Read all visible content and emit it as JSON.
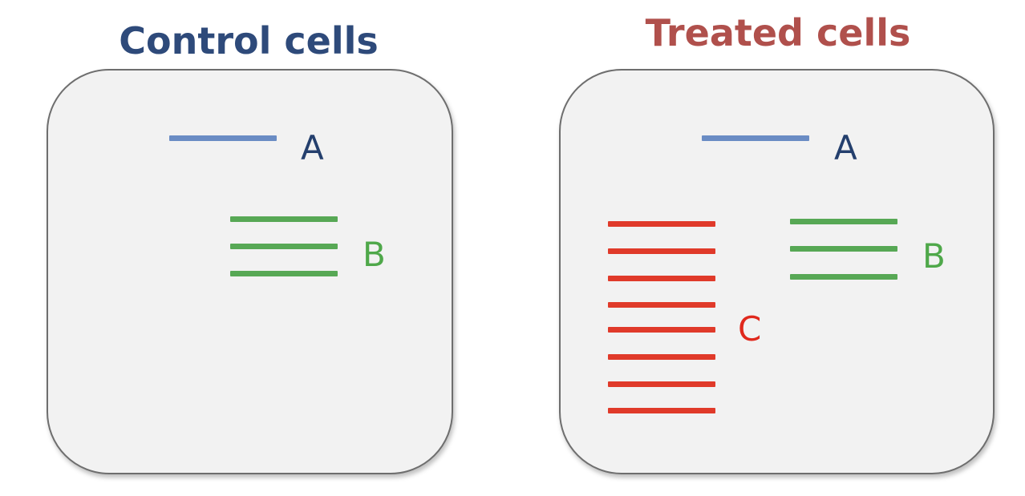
{
  "colors": {
    "panel_fill": "#f2f2f2",
    "panel_border": "#6e6e6e",
    "control_title": "#2e4a7a",
    "treated_title": "#b0504c",
    "band_a": "#6a8cc4",
    "band_b": "#57a855",
    "band_c": "#e03a2a",
    "label_a": "#243f6d",
    "label_b": "#4fa84a",
    "label_c": "#e0291d"
  },
  "control": {
    "title": "Control cells",
    "labels": {
      "a": "A",
      "b": "B"
    },
    "band_counts": {
      "a": 1,
      "b": 3
    }
  },
  "treated": {
    "title": "Treated cells",
    "labels": {
      "a": "A",
      "b": "B",
      "c": "C"
    },
    "band_counts": {
      "a": 1,
      "b": 3,
      "c": 8
    }
  }
}
